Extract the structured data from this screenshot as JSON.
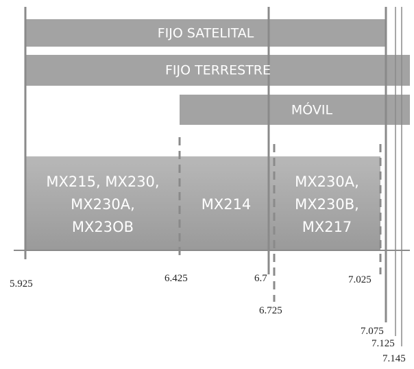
{
  "services": [
    "FIJO SATELITAL",
    "FIJO TERRESTRE",
    "MÓVIL"
  ],
  "regions": [
    [
      "MX215, MX230,",
      "MX230A,",
      "MX23OB"
    ],
    [
      "MX214"
    ],
    [
      "MX230A,",
      "MX230B,",
      "MX217"
    ]
  ],
  "ticks": [
    "5.925",
    "6.425",
    "6.7",
    "6.725",
    "7.025",
    "7.075",
    "7.125",
    "7.145"
  ]
}
